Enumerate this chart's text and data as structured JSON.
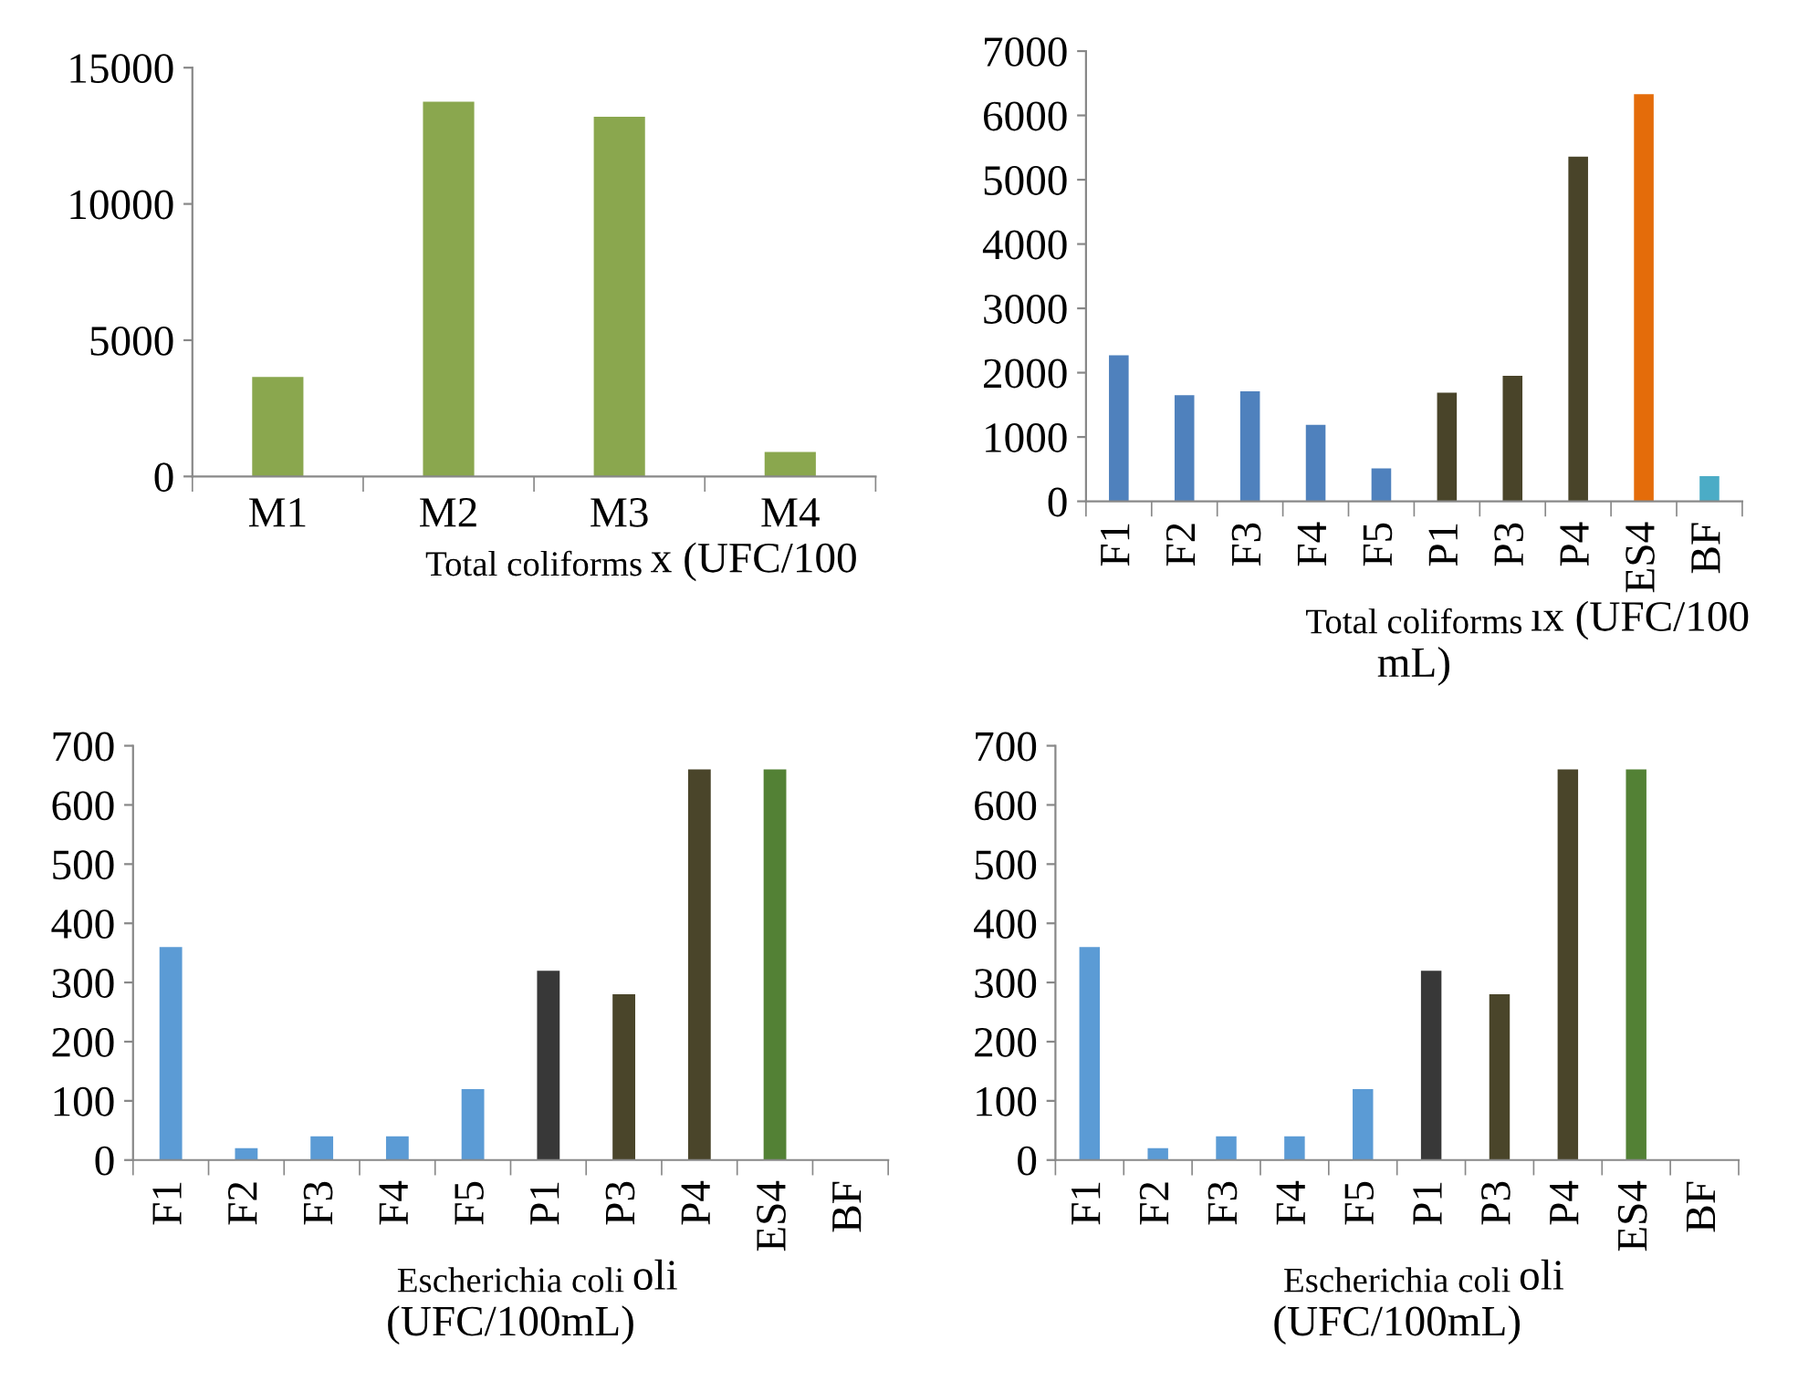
{
  "chart_data": [
    {
      "type": "bar",
      "categories": [
        "M1",
        "M2",
        "M3",
        "M4"
      ],
      "values": [
        3650,
        13750,
        13200,
        900
      ],
      "colors": [
        "#8aa74e",
        "#8aa74e",
        "#8aa74e",
        "#8aa74e"
      ],
      "ylim": [
        0,
        15000
      ],
      "yticks": [
        0,
        5000,
        10000,
        15000
      ],
      "xlabel": "Total coliforms",
      "annotations": [
        "x (UFC/100"
      ]
    },
    {
      "type": "bar",
      "categories": [
        "F1",
        "F2",
        "F3",
        "F4",
        "F5",
        "P1",
        "P3",
        "P4",
        "ES4",
        "BF"
      ],
      "values": [
        2270,
        1650,
        1710,
        1190,
        510,
        1690,
        1950,
        5360,
        6330,
        390
      ],
      "colors": [
        "#4f81bd",
        "#4f81bd",
        "#4f81bd",
        "#4f81bd",
        "#4f81bd",
        "#494429",
        "#494429",
        "#494429",
        "#e46c0a",
        "#4bacc6"
      ],
      "ylim": [
        0,
        7000
      ],
      "yticks": [
        0,
        1000,
        2000,
        3000,
        4000,
        5000,
        6000,
        7000
      ],
      "xlabel": "Total coliforms",
      "annotations": [
        "ıx (UFC/100",
        "mL)"
      ]
    },
    {
      "type": "bar",
      "categories": [
        "F1",
        "F2",
        "F3",
        "F4",
        "F5",
        "P1",
        "P3",
        "P4",
        "ES4",
        "BF"
      ],
      "values": [
        360,
        20,
        40,
        40,
        120,
        320,
        280,
        660,
        660,
        0
      ],
      "colors": [
        "#5b9bd5",
        "#5b9bd5",
        "#5b9bd5",
        "#5b9bd5",
        "#5b9bd5",
        "#383838",
        "#4a452a",
        "#4a452a",
        "#538135",
        "#538135"
      ],
      "ylim": [
        0,
        700
      ],
      "yticks": [
        0,
        100,
        200,
        300,
        400,
        500,
        600,
        700
      ],
      "xlabel": "Escherichia coli",
      "annotations": [
        "oli",
        "(UFC/100mL)"
      ]
    },
    {
      "type": "bar",
      "categories": [
        "F1",
        "F2",
        "F3",
        "F4",
        "F5",
        "P1",
        "P3",
        "P4",
        "ES4",
        "BF"
      ],
      "values": [
        360,
        20,
        40,
        40,
        120,
        320,
        280,
        660,
        660,
        0
      ],
      "colors": [
        "#5b9bd5",
        "#5b9bd5",
        "#5b9bd5",
        "#5b9bd5",
        "#5b9bd5",
        "#383838",
        "#4a452a",
        "#4a452a",
        "#538135",
        "#538135"
      ],
      "ylim": [
        0,
        700
      ],
      "yticks": [
        0,
        100,
        200,
        300,
        400,
        500,
        600,
        700
      ],
      "xlabel": "Escherichia coli",
      "annotations": [
        "oli",
        "(UFC/100mL)"
      ]
    }
  ]
}
